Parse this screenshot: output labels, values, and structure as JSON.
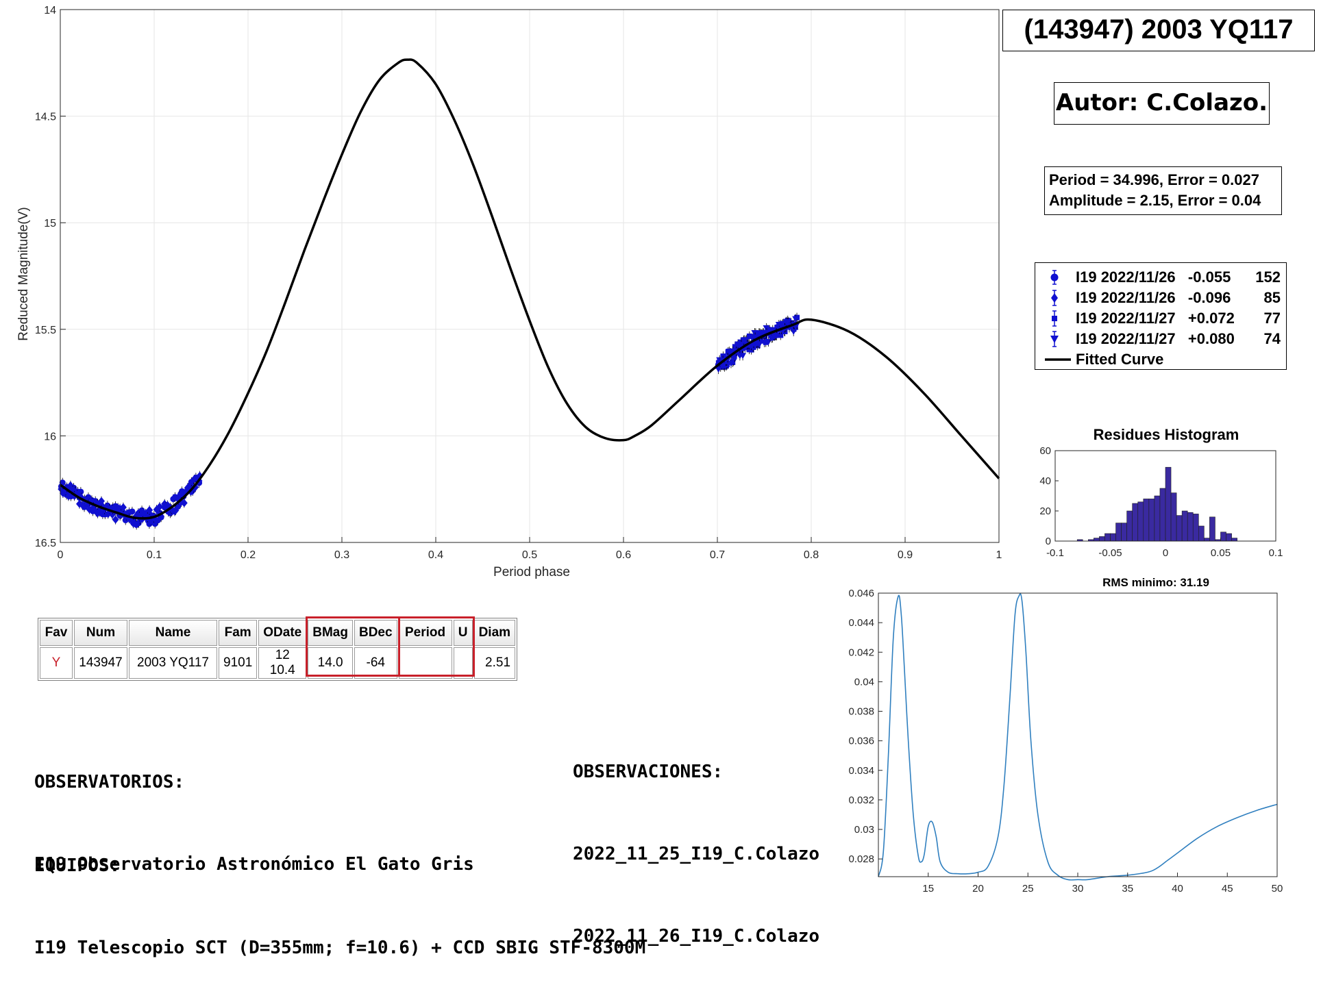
{
  "title": "(143947) 2003 YQ117",
  "author": "Autor: C.Colazo.",
  "stats": {
    "line1": "Period =  34.996, Error = 0.027",
    "line2": "Amplitude = 2.15, Error = 0.04"
  },
  "legend": [
    {
      "symbol": "circle",
      "label": "I19 2022/11/26   -0.055",
      "count": "152"
    },
    {
      "symbol": "diamond",
      "label": "I19 2022/11/26   -0.096",
      "count": "85"
    },
    {
      "symbol": "square",
      "label": "I19 2022/11/27   +0.072",
      "count": "77"
    },
    {
      "symbol": "triangle-down",
      "label": "I19 2022/11/27   +0.080",
      "count": "74"
    },
    {
      "symbol": "line",
      "label": "Fitted Curve",
      "count": ""
    }
  ],
  "colors": {
    "points": "#1010d0",
    "curve": "#000000",
    "histogram": "#3a2aa0",
    "periodogram": "#2f7fbf",
    "highlight": "#c8202a"
  },
  "table": {
    "headers": [
      "Fav",
      "Num",
      "Name",
      "Fam",
      "ODate",
      "BMag",
      "BDec",
      "Period",
      "U",
      "Diam"
    ],
    "row": [
      "Y",
      "143947",
      "2003 YQ117",
      "9101",
      "12 10.4",
      "14.0",
      "-64",
      "",
      "",
      "2.51"
    ]
  },
  "observatorios": {
    "heading": "OBSERVATORIOS:",
    "text": "I19 Observatorio Astronómico El Gato Gris"
  },
  "equipos": {
    "heading": "EQUIPOS:",
    "text": "I19 Telescopio SCT (D=355mm; f=10.6) + CCD SBIG STF-8300M"
  },
  "observaciones": {
    "heading": "OBSERVACIONES:",
    "lines": [
      "2022_11_25_I19_C.Colazo",
      "2022_11_26_I19_C.Colazo"
    ]
  },
  "chart_data": [
    {
      "type": "line",
      "name": "lightcurve",
      "title": "",
      "xlabel": "Period phase",
      "ylabel": "Reduced Magnitude(V)",
      "xlim": [
        0,
        1
      ],
      "ylim": [
        16.5,
        14
      ],
      "y_reversed": true,
      "grid": true,
      "xticks": [
        0,
        0.1,
        0.2,
        0.3,
        0.4,
        0.5,
        0.6,
        0.7,
        0.8,
        0.9,
        1
      ],
      "yticks": [
        14,
        14.5,
        15,
        15.5,
        16,
        16.5
      ],
      "fitted_curve": {
        "x": [
          0,
          0.02,
          0.04,
          0.06,
          0.08,
          0.1,
          0.12,
          0.14,
          0.16,
          0.18,
          0.2,
          0.22,
          0.24,
          0.26,
          0.28,
          0.3,
          0.32,
          0.34,
          0.36,
          0.37,
          0.38,
          0.4,
          0.42,
          0.44,
          0.46,
          0.48,
          0.5,
          0.52,
          0.54,
          0.56,
          0.58,
          0.6,
          0.612,
          0.63,
          0.66,
          0.7,
          0.74,
          0.78,
          0.8,
          0.84,
          0.88,
          0.92,
          0.96,
          1
        ],
        "y": [
          16.23,
          16.29,
          16.33,
          16.36,
          16.385,
          16.38,
          16.33,
          16.25,
          16.13,
          15.98,
          15.8,
          15.6,
          15.37,
          15.13,
          14.9,
          14.68,
          14.48,
          14.33,
          14.25,
          14.235,
          14.25,
          14.35,
          14.52,
          14.73,
          14.97,
          15.22,
          15.46,
          15.68,
          15.85,
          15.96,
          16.01,
          16.02,
          16.0,
          15.95,
          15.83,
          15.67,
          15.55,
          15.48,
          15.455,
          15.51,
          15.63,
          15.8,
          16.0,
          16.2
        ]
      },
      "series": [
        {
          "name": "I19 2022/11/26   -0.055",
          "marker": "circle",
          "x_range": [
            0.0,
            0.15
          ],
          "y_follow_curve": true
        },
        {
          "name": "I19 2022/11/26   -0.096",
          "marker": "diamond",
          "x_range": [
            0.0,
            0.15
          ],
          "y_follow_curve": true
        },
        {
          "name": "I19 2022/11/27   +0.072",
          "marker": "square",
          "x_range": [
            0.7,
            0.785
          ],
          "y_follow_curve": true
        },
        {
          "name": "I19 2022/11/27   +0.080",
          "marker": "triangle-down",
          "x_range": [
            0.7,
            0.785
          ],
          "y_follow_curve": true
        }
      ]
    },
    {
      "type": "bar",
      "name": "histogram",
      "title": "Residues Histogram",
      "xlim": [
        -0.1,
        0.1
      ],
      "ylim": [
        0,
        60
      ],
      "xticks": [
        -0.1,
        -0.05,
        0,
        0.05,
        0.1
      ],
      "yticks": [
        0,
        20,
        40,
        60
      ],
      "bin_width": 0.005,
      "bin_starts": [
        -0.08,
        -0.075,
        -0.07,
        -0.065,
        -0.06,
        -0.055,
        -0.05,
        -0.045,
        -0.04,
        -0.035,
        -0.03,
        -0.025,
        -0.02,
        -0.015,
        -0.01,
        -0.005,
        0,
        0.005,
        0.01,
        0.015,
        0.02,
        0.025,
        0.03,
        0.035,
        0.04,
        0.045,
        0.05,
        0.055,
        0.06,
        0.065
      ],
      "values": [
        1,
        0,
        1,
        2,
        3,
        5,
        5,
        12,
        12,
        20,
        25,
        26,
        28,
        28,
        30,
        35,
        49,
        32,
        17,
        20,
        19,
        18,
        10,
        2,
        16,
        1,
        6,
        5,
        2,
        0
      ]
    },
    {
      "type": "line",
      "name": "periodogram",
      "title": "RMS minimo: 31.19",
      "xlim": [
        10,
        50
      ],
      "ylim": [
        0.0268,
        0.046
      ],
      "xticks": [
        15,
        20,
        25,
        30,
        35,
        40,
        45,
        50
      ],
      "yticks": [
        0.028,
        0.03,
        0.032,
        0.034,
        0.036,
        0.038,
        0.04,
        0.042,
        0.044,
        0.046
      ],
      "x": [
        10,
        10.5,
        11,
        11.5,
        12,
        12.3,
        12.6,
        13,
        13.5,
        14,
        14.3,
        14.6,
        15,
        15.4,
        15.8,
        16.2,
        17,
        18,
        19,
        20,
        21,
        22,
        22.6,
        23.2,
        23.7,
        24.1,
        24.4,
        24.8,
        25.3,
        26,
        27,
        28,
        29,
        30,
        31,
        33,
        35,
        37,
        38,
        39,
        40,
        42,
        44,
        46,
        48,
        50
      ],
      "y": [
        0.0268,
        0.0285,
        0.035,
        0.043,
        0.0458,
        0.0445,
        0.041,
        0.036,
        0.031,
        0.0282,
        0.0278,
        0.0283,
        0.0302,
        0.0305,
        0.0295,
        0.0278,
        0.0271,
        0.027,
        0.027,
        0.0271,
        0.0275,
        0.0295,
        0.033,
        0.039,
        0.0445,
        0.0458,
        0.0455,
        0.042,
        0.036,
        0.031,
        0.0278,
        0.0269,
        0.0266,
        0.0266,
        0.0266,
        0.0268,
        0.0269,
        0.0271,
        0.0274,
        0.0279,
        0.0284,
        0.0294,
        0.0302,
        0.0308,
        0.0313,
        0.0317
      ]
    }
  ]
}
